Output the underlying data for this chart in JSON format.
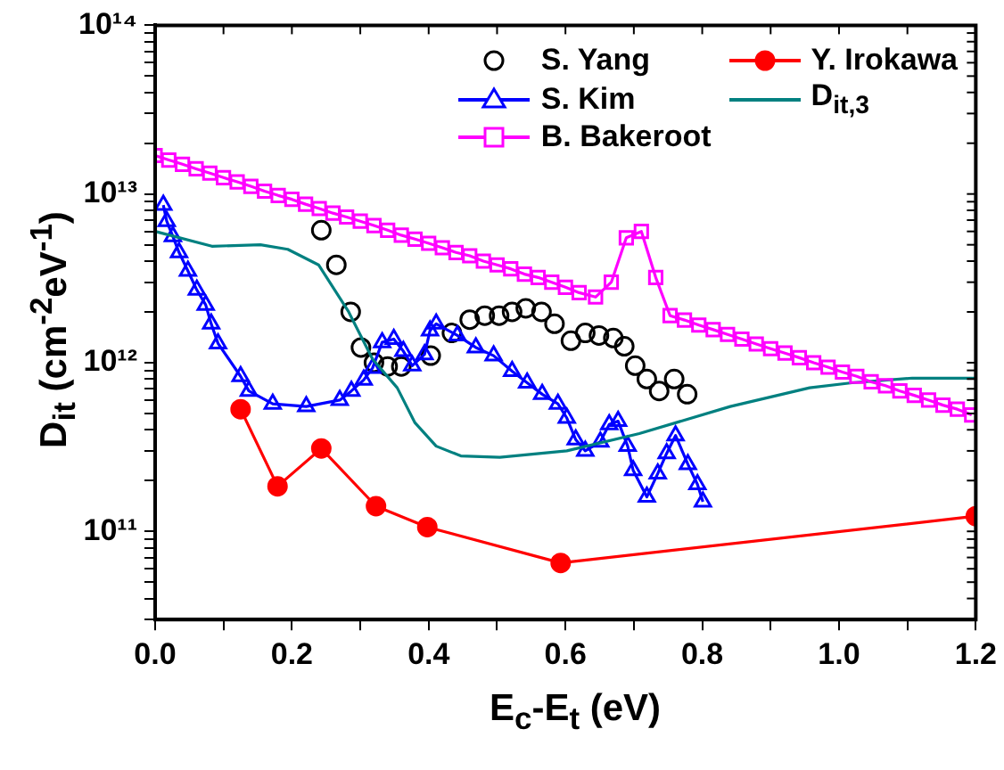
{
  "chart_data": {
    "type": "line",
    "xlabel": "E$_{c}$-E$_{t}$ (eV)",
    "ylabel": "D$_{it}$ (cm$^{-2}$eV$^{-1}$)",
    "log": "y",
    "grid": false,
    "legend": "top right",
    "xlim": [
      0,
      1.2
    ],
    "xticks": [
      {
        "value": 0,
        "label": "0.0"
      },
      {
        "value": 0.1,
        "label": null
      },
      {
        "value": 0.2,
        "label": "0.2"
      },
      {
        "value": 0.3,
        "label": null
      },
      {
        "value": 0.4,
        "label": "0.4"
      },
      {
        "value": 0.5,
        "label": null
      },
      {
        "value": 0.6,
        "label": "0.6"
      },
      {
        "value": 0.7,
        "label": null
      },
      {
        "value": 0.8,
        "label": "0.8"
      },
      {
        "value": 0.9,
        "label": null
      },
      {
        "value": 1.0,
        "label": "1.0"
      },
      {
        "value": 1.1,
        "label": null
      },
      {
        "value": 1.2,
        "label": "1.2"
      }
    ],
    "ylim": [
      30000000000.0,
      100000000000000.0
    ],
    "yticks": [
      {
        "value": 30000000000.0,
        "label": null
      },
      {
        "value": 40000000000.0,
        "label": null
      },
      {
        "value": 50000000000.0,
        "label": null
      },
      {
        "value": 60000000000.0,
        "label": null
      },
      {
        "value": 70000000000.0,
        "label": null
      },
      {
        "value": 80000000000.0,
        "label": null
      },
      {
        "value": 90000000000.0,
        "label": null
      },
      {
        "value": 100000000000.0,
        "label": "10¹¹"
      },
      {
        "value": 200000000000.0,
        "label": null
      },
      {
        "value": 300000000000.0,
        "label": null
      },
      {
        "value": 400000000000.0,
        "label": null
      },
      {
        "value": 500000000000.0,
        "label": null
      },
      {
        "value": 600000000000.0,
        "label": null
      },
      {
        "value": 700000000000.0,
        "label": null
      },
      {
        "value": 800000000000.0,
        "label": null
      },
      {
        "value": 900000000000.0,
        "label": null
      },
      {
        "value": 1000000000000.0,
        "label": "10¹²"
      },
      {
        "value": 2000000000000.0,
        "label": null
      },
      {
        "value": 3000000000000.0,
        "label": null
      },
      {
        "value": 4000000000000.0,
        "label": null
      },
      {
        "value": 5000000000000.0,
        "label": null
      },
      {
        "value": 6000000000000.0,
        "label": null
      },
      {
        "value": 7000000000000.0,
        "label": null
      },
      {
        "value": 8000000000000.0,
        "label": null
      },
      {
        "value": 9000000000000.0,
        "label": null
      },
      {
        "value": 10000000000000.0,
        "label": "10¹³"
      },
      {
        "value": 20000000000000.0,
        "label": null
      },
      {
        "value": 30000000000000.0,
        "label": null
      },
      {
        "value": 40000000000000.0,
        "label": null
      },
      {
        "value": 50000000000000.0,
        "label": null
      },
      {
        "value": 60000000000000.0,
        "label": null
      },
      {
        "value": 70000000000000.0,
        "label": null
      },
      {
        "value": 80000000000000.0,
        "label": null
      },
      {
        "value": 90000000000000.0,
        "label": null
      },
      {
        "value": 100000000000000.0,
        "label": "10¹⁴"
      }
    ],
    "series": [
      {
        "name": "S. Yang",
        "type": "scatter",
        "marker": "circle",
        "color": "#000000",
        "x": [
          0.243,
          0.265,
          0.286,
          0.301,
          0.32,
          0.34,
          0.36,
          0.38,
          0.403,
          0.434,
          0.46,
          0.482,
          0.503,
          0.522,
          0.542,
          0.565,
          0.584,
          0.608,
          0.629,
          0.649,
          0.67,
          0.686,
          0.702,
          0.719,
          0.737,
          0.759,
          0.778
        ],
        "values": [
          6100000000000.0,
          3800000000000.0,
          2000000000000.0,
          1230000000000.0,
          1000000000000.0,
          950000000000.0,
          950000000000.0,
          null,
          1100000000000.0,
          1500000000000.0,
          1800000000000.0,
          1900000000000.0,
          1900000000000.0,
          2000000000000.0,
          2100000000000.0,
          2000000000000.0,
          1700000000000.0,
          1350000000000.0,
          1500000000000.0,
          1450000000000.0,
          1400000000000.0,
          1250000000000.0,
          960000000000.0,
          800000000000.0,
          680000000000.0,
          800000000000.0,
          650000000000.0
        ]
      },
      {
        "name": "Y. Irokawa",
        "type": "line",
        "marker": "circle",
        "color": "#ff0000",
        "x": [
          0.125,
          0.179,
          0.243,
          0.323,
          0.398,
          0.593,
          1.2
        ],
        "values": [
          530000000000.0,
          185000000000.0,
          310000000000.0,
          141000000000.0,
          106000000000.0,
          65000000000.0,
          123000000000.0
        ]
      },
      {
        "name": "S. Kim",
        "type": "line",
        "marker": "triangle",
        "color": "#0000ff",
        "x": [
          0.012,
          0.017,
          0.026,
          0.035,
          0.048,
          0.061,
          0.074,
          0.082,
          0.092,
          0.125,
          0.137,
          0.172,
          0.221,
          0.27,
          0.287,
          0.305,
          0.318,
          0.332,
          0.349,
          0.363,
          0.376,
          0.394,
          0.402,
          0.411,
          0.442,
          0.469,
          0.495,
          0.522,
          0.544,
          0.566,
          0.589,
          0.602,
          0.615,
          0.629,
          0.651,
          0.664,
          0.677,
          0.691,
          0.699,
          0.719,
          0.735,
          0.748,
          0.761,
          0.779,
          0.793,
          0.801
        ],
        "values": [
          8600000000000.0,
          6900000000000.0,
          5600000000000.0,
          4500000000000.0,
          3500000000000.0,
          2700000000000.0,
          2200000000000.0,
          1700000000000.0,
          1300000000000.0,
          830000000000.0,
          680000000000.0,
          570000000000.0,
          550000000000.0,
          600000000000.0,
          680000000000.0,
          790000000000.0,
          930000000000.0,
          1320000000000.0,
          1380000000000.0,
          1170000000000.0,
          960000000000.0,
          1120000000000.0,
          1550000000000.0,
          1700000000000.0,
          1450000000000.0,
          1230000000000.0,
          1100000000000.0,
          890000000000.0,
          760000000000.0,
          650000000000.0,
          570000000000.0,
          470000000000.0,
          350000000000.0,
          300000000000.0,
          340000000000.0,
          430000000000.0,
          450000000000.0,
          320000000000.0,
          230000000000.0,
          160000000000.0,
          220000000000.0,
          290000000000.0,
          370000000000.0,
          250000000000.0,
          190000000000.0,
          150000000000.0
        ]
      },
      {
        "name": "D$_{it,3}$",
        "type": "line",
        "marker": "none",
        "color": "#008080",
        "x": [
          0,
          0.083,
          0.154,
          0.194,
          0.239,
          0.283,
          0.318,
          0.354,
          0.38,
          0.411,
          0.447,
          0.504,
          0.602,
          0.708,
          0.841,
          0.957,
          1.019,
          1.107,
          1.2
        ],
        "values": [
          6000000000000.0,
          4900000000000.0,
          5000000000000.0,
          4700000000000.0,
          3800000000000.0,
          2000000000000.0,
          1050000000000.0,
          710000000000.0,
          440000000000.0,
          320000000000.0,
          280000000000.0,
          275000000000.0,
          300000000000.0,
          380000000000.0,
          550000000000.0,
          710000000000.0,
          760000000000.0,
          810000000000.0,
          810000000000.0
        ]
      },
      {
        "name": "B. Bakeroot",
        "type": "line",
        "marker": "square",
        "color": "#ff00ff",
        "x": [
          0,
          0.02,
          0.04,
          0.06,
          0.08,
          0.1,
          0.12,
          0.14,
          0.16,
          0.18,
          0.2,
          0.22,
          0.24,
          0.26,
          0.28,
          0.3,
          0.32,
          0.34,
          0.36,
          0.38,
          0.4,
          0.42,
          0.44,
          0.46,
          0.48,
          0.5,
          0.52,
          0.54,
          0.56,
          0.58,
          0.6,
          0.62,
          0.644,
          0.667,
          0.689,
          0.711,
          0.732,
          0.753,
          0.774,
          0.795,
          0.816,
          0.837,
          0.858,
          0.879,
          0.9,
          0.921,
          0.942,
          0.963,
          0.984,
          1.005,
          1.026,
          1.047,
          1.068,
          1.089,
          1.11,
          1.131,
          1.152,
          1.173,
          1.194
        ],
        "values": [
          16900000000000.0,
          15900000000000.0,
          15000000000000.0,
          14100000000000.0,
          13300000000000.0,
          12500000000000.0,
          11800000000000.0,
          11100000000000.0,
          10400000000000.0,
          9800000000000.0,
          9300000000000.0,
          8700000000000.0,
          8200000000000.0,
          7700000000000.0,
          7300000000000.0,
          6900000000000.0,
          6500000000000.0,
          6100000000000.0,
          5700000000000.0,
          5400000000000.0,
          5100000000000.0,
          4800000000000.0,
          4500000000000.0,
          4300000000000.0,
          4000000000000.0,
          3800000000000.0,
          3600000000000.0,
          3350000000000.0,
          3200000000000.0,
          3000000000000.0,
          2800000000000.0,
          2600000000000.0,
          2450000000000.0,
          3000000000000.0,
          5500000000000.0,
          6000000000000.0,
          3200000000000.0,
          1900000000000.0,
          1790000000000.0,
          1670000000000.0,
          1570000000000.0,
          1470000000000.0,
          1380000000000.0,
          1290000000000.0,
          1210000000000.0,
          1140000000000.0,
          1070000000000.0,
          1000000000000.0,
          940000000000.0,
          880000000000.0,
          830000000000.0,
          770000000000.0,
          730000000000.0,
          680000000000.0,
          640000000000.0,
          600000000000.0,
          560000000000.0,
          530000000000.0,
          490000000000.0
        ]
      }
    ]
  }
}
